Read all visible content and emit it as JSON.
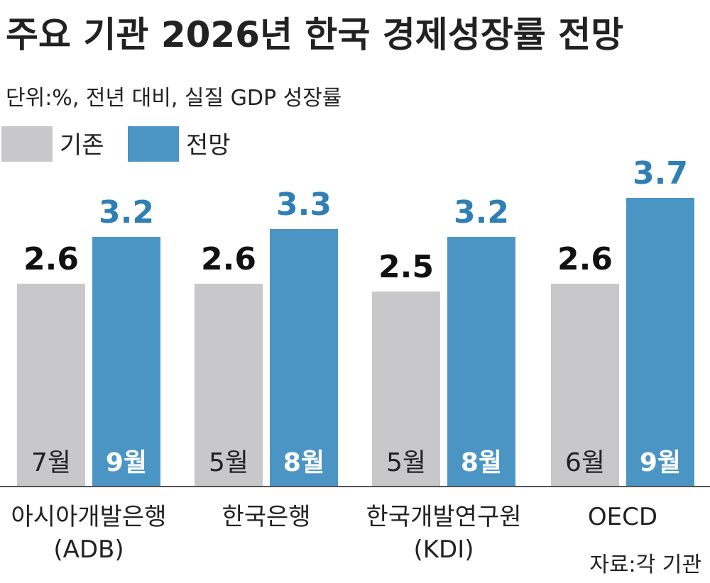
{
  "title": "주요 기관 2026년 한국 경제성장률 전망",
  "subtitle": "단위:%, 전년 대비, 실질 GDP 성장률",
  "source": "자료:각 기관",
  "colors": {
    "previous": "#c8c8ca",
    "forecast": "#4a95c4",
    "forecast_text": "#2f7fb5"
  },
  "chart_data": {
    "type": "bar",
    "categories": [
      {
        "lines": [
          "아시아개발은행",
          "(ADB)"
        ]
      },
      {
        "lines": [
          "한국은행"
        ]
      },
      {
        "lines": [
          "한국개발연구원",
          "(KDI)"
        ]
      },
      {
        "lines": [
          "OECD"
        ]
      }
    ],
    "series": [
      {
        "name": "기존",
        "values": [
          2.6,
          2.6,
          2.5,
          2.6
        ],
        "labels": [
          "2.6",
          "2.6",
          "2.5",
          "2.6"
        ],
        "months": [
          "7월",
          "5월",
          "5월",
          "6월"
        ]
      },
      {
        "name": "전망",
        "values": [
          3.2,
          3.3,
          3.2,
          3.7
        ],
        "labels": [
          "3.2",
          "3.3",
          "3.2",
          "3.7"
        ],
        "months": [
          "9월",
          "8월",
          "8월",
          "9월"
        ]
      }
    ],
    "ylim": [
      0,
      4.5
    ],
    "legend_position": "top-left",
    "grid": false
  }
}
